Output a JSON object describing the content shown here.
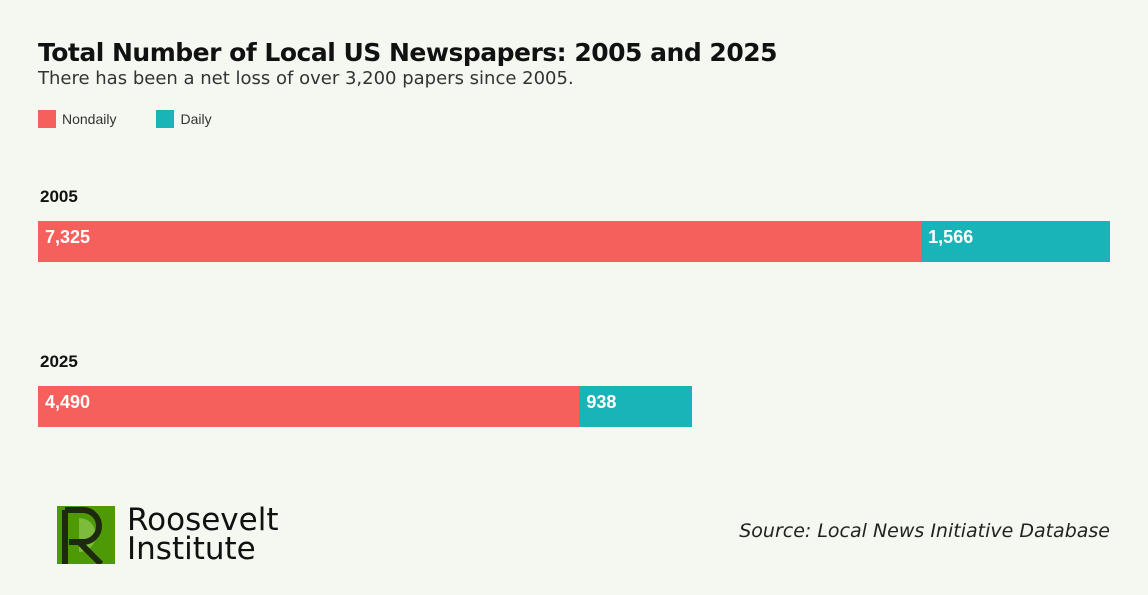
{
  "chart_data": {
    "type": "bar",
    "orientation": "horizontal",
    "stacked": true,
    "title": "Total Number of Local US Newspapers: 2005 and 2025",
    "subtitle": "There has been a net loss of over 3,200 papers since 2005.",
    "categories": [
      "2005",
      "2025"
    ],
    "series": [
      {
        "name": "Nondaily",
        "values": [
          7325,
          4490
        ],
        "labels": [
          "7,325",
          "4,490"
        ],
        "color": "#f5605c"
      },
      {
        "name": "Daily",
        "values": [
          1566,
          938
        ],
        "labels": [
          "1,566",
          "938"
        ],
        "color": "#19b4b8"
      }
    ],
    "legend_position": "top-left",
    "grid": false
  },
  "source": "Source: Local News Initiative Database",
  "logo": {
    "text_line1": "Roosevelt",
    "text_line2": "Institute",
    "color": "#4e9a06"
  }
}
